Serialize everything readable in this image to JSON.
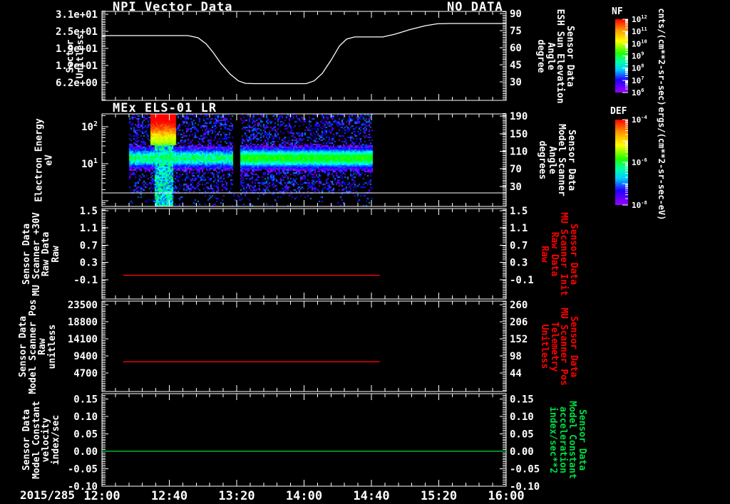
{
  "figure": {
    "background": "#000000",
    "date_label": "2015/285",
    "x_axis": {
      "tick_labels": [
        "12:00",
        "12:40",
        "13:20",
        "14:00",
        "14:40",
        "15:20",
        "16:00"
      ],
      "tick_hours": [
        12,
        12.6667,
        13.3333,
        14,
        14.6667,
        15.3333,
        16
      ],
      "range_hours": [
        12,
        16
      ],
      "minor_step_hours": 0.13333
    }
  },
  "chart_data": [
    {
      "type": "line",
      "title": "NPI Vector Data",
      "annotation": "NO DATA",
      "y_axis_label_lines": [
        "Sector",
        "Unitless"
      ],
      "left_ticks": {
        "labels": [
          "3.1e+01",
          "2.5e+01",
          "1.9e+01",
          "1.2e+01",
          "6.2e+00"
        ],
        "values": [
          31,
          24.8,
          18.6,
          12.4,
          6.2
        ]
      },
      "y_range": [
        -0.3,
        32.1
      ],
      "right_axis": {
        "label_lines": [
          "Sensor Data",
          "ESH Sun Elevation",
          "Angle",
          "degree"
        ],
        "label_color": "#ffffff",
        "ticks": {
          "labels": [
            "90",
            "75",
            "60",
            "45",
            "30"
          ],
          "values": [
            90,
            75,
            60,
            45,
            30
          ]
        },
        "range": [
          13.6,
          91.9
        ]
      },
      "series": [
        {
          "name": "sector",
          "color": "#ffffff",
          "points": [
            [
              12.0,
              23.3
            ],
            [
              12.85,
              23.3
            ],
            [
              12.95,
              22.5
            ],
            [
              13.03,
              20.3
            ],
            [
              13.1,
              17.2
            ],
            [
              13.18,
              13.0
            ],
            [
              13.27,
              9.2
            ],
            [
              13.35,
              6.8
            ],
            [
              13.42,
              5.9
            ],
            [
              13.5,
              5.8
            ],
            [
              14.02,
              5.8
            ],
            [
              14.1,
              6.8
            ],
            [
              14.18,
              9.5
            ],
            [
              14.27,
              14.5
            ],
            [
              14.35,
              19.5
            ],
            [
              14.42,
              22.0
            ],
            [
              14.5,
              22.8
            ],
            [
              14.78,
              22.8
            ],
            [
              14.9,
              23.8
            ],
            [
              15.05,
              25.5
            ],
            [
              15.2,
              26.9
            ],
            [
              15.32,
              27.6
            ],
            [
              15.45,
              27.7
            ],
            [
              16.0,
              27.7
            ]
          ]
        }
      ]
    },
    {
      "type": "heatmap",
      "title": "MEx ELS-01 LR",
      "y_axis_label_lines": [
        "Electron Energy",
        "eV"
      ],
      "y_scale": "log",
      "left_ticks": {
        "labels": [
          {
            "base": "10",
            "exp": "2"
          },
          {
            "base": "10",
            "exp": "1"
          }
        ],
        "values": [
          2,
          1
        ]
      },
      "y_log_range": [
        -0.154,
        2.346
      ],
      "right_axis": {
        "label_lines": [
          "Sensor Data",
          "Model Scanner",
          "Angle",
          "degrees"
        ],
        "label_color": "#ffffff",
        "ticks": {
          "labels": [
            "190",
            "150",
            "110",
            "70",
            "30"
          ],
          "values": [
            190,
            150,
            110,
            70,
            30
          ]
        },
        "range": [
          -15.5,
          195
        ]
      },
      "divider_log_e": 0.21,
      "heatmap": {
        "time_range_hours": [
          12.27,
          14.68
        ],
        "band": {
          "center_log_e": 1.15,
          "sigma_log_e": 0.25,
          "peak_intensity": 0.62
        },
        "burst": {
          "time_range_hours": [
            12.48,
            12.73
          ],
          "min_log_e": 1.5
        },
        "streak_time_range_hours": [
          12.52,
          12.7
        ],
        "gap_time_range_hours": [
          13.3,
          13.37
        ],
        "noise_probability": 0.32,
        "seed": 20150285
      }
    },
    {
      "type": "line",
      "y_axis_label_lines": [
        "Sensor Data",
        "MU Scanner +30V",
        "Raw Data",
        "Raw"
      ],
      "left_ticks": {
        "labels": [
          "1.5",
          "1.1",
          "0.7",
          "0.3",
          "-0.1"
        ],
        "values": [
          1.5,
          1.1,
          0.7,
          0.3,
          -0.1
        ]
      },
      "y_range": [
        -0.55,
        1.55
      ],
      "right_axis": {
        "label_lines": [
          "Sensor Data",
          "MU Scanner Init",
          "Raw Data",
          "Raw"
        ],
        "label_color": "#ff0000",
        "ticks": {
          "labels": [
            "1.5",
            "1.1",
            "0.7",
            "0.3",
            "-0.1"
          ],
          "values": [
            1.5,
            1.1,
            0.7,
            0.3,
            -0.1
          ]
        },
        "range": [
          -0.55,
          1.55
        ]
      },
      "series": [
        {
          "name": "mu-scanner-30v",
          "color": "#ff0000",
          "points": [
            [
              12.21,
              0.0
            ],
            [
              14.75,
              0.0
            ]
          ]
        }
      ]
    },
    {
      "type": "line",
      "y_axis_label_lines": [
        "Sensor Data",
        "Model Scanner Pos",
        "Raw",
        "unitless"
      ],
      "left_ticks": {
        "labels": [
          "23500",
          "18800",
          "14100",
          "9400",
          "4700"
        ],
        "values": [
          23500,
          18800,
          14100,
          9400,
          4700
        ]
      },
      "y_range": [
        -400,
        24500
      ],
      "right_axis": {
        "label_lines": [
          "Sensor Data",
          "MU Scanner Pos",
          "Telemetry",
          "Unitless"
        ],
        "label_color": "#ff0000",
        "ticks": {
          "labels": [
            "260",
            "206",
            "152",
            "98",
            "44"
          ],
          "values": [
            260,
            206,
            152,
            98,
            44
          ]
        },
        "range": [
          -14.5,
          271
        ]
      },
      "series": [
        {
          "name": "model-scanner-pos",
          "color": "#ff0000",
          "points": [
            [
              12.21,
              7800
            ],
            [
              14.75,
              7800
            ]
          ]
        }
      ]
    },
    {
      "type": "line",
      "y_axis_label_lines": [
        "Sensor Data",
        "Model Constant",
        "velocity",
        "index/sec"
      ],
      "left_ticks": {
        "labels": [
          "0.15",
          "0.10",
          "0.05",
          "0.00",
          "-0.05",
          "-0.10"
        ],
        "values": [
          0.15,
          0.1,
          0.05,
          0.0,
          -0.05,
          -0.1
        ]
      },
      "y_range": [
        -0.1,
        0.165
      ],
      "right_axis": {
        "label_lines": [
          "Sensor Data",
          "Model Constant",
          "acceleration",
          "index/sec**2"
        ],
        "label_color": "#00dd44",
        "ticks": {
          "labels": [
            "0.15",
            "0.10",
            "0.05",
            "0.00",
            "-0.05",
            "-0.10"
          ],
          "values": [
            0.15,
            0.1,
            0.05,
            0.0,
            -0.05,
            -0.1
          ]
        },
        "range": [
          -0.1,
          0.165
        ]
      },
      "series": [
        {
          "name": "model-constant-velocity",
          "color": "#00dd44",
          "points": [
            [
              12.0,
              0.0
            ],
            [
              16.0,
              0.0
            ]
          ]
        }
      ]
    }
  ],
  "colorbars": [
    {
      "name": "NF",
      "units": "cnts/(cm**2-sr-sec)",
      "tick_labels": [
        {
          "base": "10",
          "exp": "12"
        },
        {
          "base": "10",
          "exp": "11"
        },
        {
          "base": "10",
          "exp": "10"
        },
        {
          "base": "10",
          "exp": "9"
        },
        {
          "base": "10",
          "exp": "8"
        },
        {
          "base": "10",
          "exp": "7"
        },
        {
          "base": "10",
          "exp": "6"
        }
      ]
    },
    {
      "name": "DEF",
      "units": "ergs/(cm**2-sr-sec-eV)",
      "tick_labels": [
        {
          "base": "10",
          "exp": "-4"
        },
        {
          "base": "10",
          "exp": "-6"
        },
        {
          "base": "10",
          "exp": "-8"
        }
      ]
    }
  ]
}
